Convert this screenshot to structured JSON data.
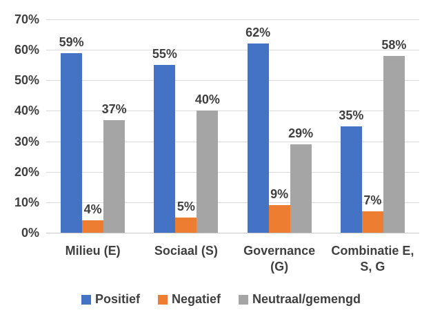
{
  "chart_data": {
    "type": "bar",
    "title": "",
    "categories": [
      "Milieu (E)",
      "Sociaal (S)",
      "Governance\n(G)",
      "Combinatie E,\nS, G"
    ],
    "series": [
      {
        "name": "Positief",
        "color": "#4472C4",
        "values": [
          59,
          55,
          62,
          35
        ],
        "labels": [
          "59%",
          "55%",
          "62%",
          "35%"
        ]
      },
      {
        "name": "Negatief",
        "color": "#ED7D31",
        "values": [
          4,
          5,
          9,
          7
        ],
        "labels": [
          "4%",
          "5%",
          "9%",
          "7%"
        ]
      },
      {
        "name": "Neutraal/gemengd",
        "color": "#A5A5A5",
        "values": [
          37,
          40,
          29,
          58
        ],
        "labels": [
          "37%",
          "40%",
          "29%",
          "58%"
        ]
      }
    ],
    "xlabel": "",
    "ylabel": "",
    "ylim": [
      0,
      70
    ],
    "yticks": [
      {
        "value": 0,
        "label": "0%"
      },
      {
        "value": 10,
        "label": "10%"
      },
      {
        "value": 20,
        "label": "20%"
      },
      {
        "value": 30,
        "label": "30%"
      },
      {
        "value": 40,
        "label": "40%"
      },
      {
        "value": 50,
        "label": "50%"
      },
      {
        "value": 60,
        "label": "60%"
      },
      {
        "value": 70,
        "label": "70%"
      }
    ],
    "grid": true,
    "legend_position": "bottom",
    "colors": {
      "text": "#3f3f3f",
      "gridline": "#d9d9d9",
      "axis_line": "#c8c8c8",
      "background": "#ffffff"
    }
  }
}
